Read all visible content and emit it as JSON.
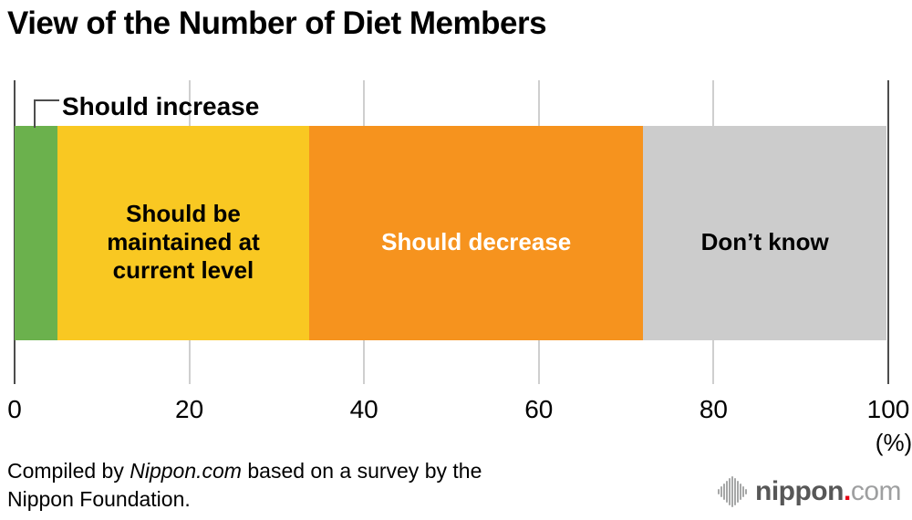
{
  "title": "View of the Number of Diet Members",
  "chart_data": {
    "type": "bar",
    "stacked": true,
    "orientation": "horizontal",
    "title": "View of the Number of Diet Members",
    "categories": [
      "Should increase",
      "Should be maintained at current level",
      "Should decrease",
      "Don’t know"
    ],
    "values": [
      4.9,
      28.9,
      38.3,
      27.9
    ],
    "colors": [
      "#6bb14d",
      "#f9c822",
      "#f6931e",
      "#cccccc"
    ],
    "label_colors": [
      "#000000",
      "#000000",
      "#ffffff",
      "#000000"
    ],
    "xlim": [
      0,
      100
    ],
    "xticks": [
      0,
      20,
      40,
      60,
      80,
      100
    ],
    "x_unit_label": "(%)",
    "callout_label": "Should increase",
    "grid": true,
    "legend": "labels-inside-segments"
  },
  "caption": {
    "line1_pre": "Compiled by ",
    "line1_italic": "Nippon.com",
    "line1_post": " based on a survey by the",
    "line2": "Nippon Foundation."
  },
  "logo": {
    "icon": "soundwave-icon",
    "name": "nippon",
    "dot": ".",
    "tld": "com"
  }
}
